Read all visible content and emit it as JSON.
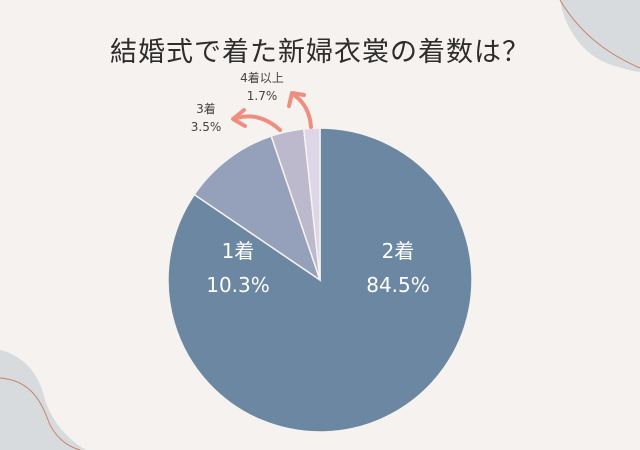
{
  "chart_data": {
    "type": "pie",
    "title": "結婚式で着た新婦衣裳の着数は？",
    "categories": [
      "2着",
      "1着",
      "3着",
      "4着以上"
    ],
    "values": [
      84.5,
      10.3,
      3.5,
      1.7
    ],
    "value_labels": [
      "84.5%",
      "10.3%",
      "3.5%",
      "1.7%"
    ],
    "colors": [
      "#6b87a2",
      "#95a1bb",
      "#bdb9cd",
      "#ddd6e7"
    ],
    "arrow_color": "#ef8e7e",
    "legend": "none",
    "start_angle": "12 o'clock, clockwise"
  }
}
